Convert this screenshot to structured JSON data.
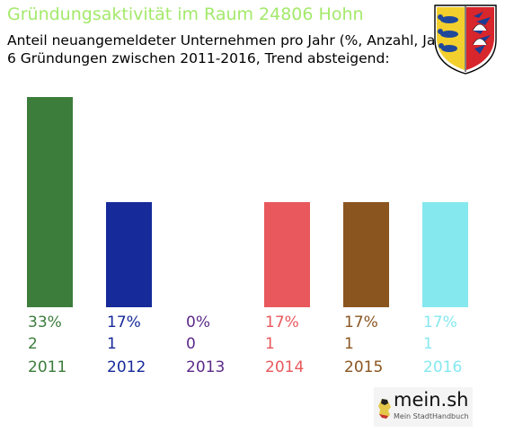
{
  "title": "Gründungsaktivität im Raum 24806 Hohn",
  "subtitle_line1": "Anteil neuangemeldeter Unternehmen pro Jahr (%, Anzahl, Jahr)",
  "subtitle_line2": "6 Gründungen zwischen 2011-2016, Trend absteigend:",
  "logo": {
    "name": "mein.sh",
    "tagline": "Mein StadtHandbuch"
  },
  "chart_data": {
    "type": "bar",
    "categories": [
      "2011",
      "2012",
      "2013",
      "2014",
      "2015",
      "2016"
    ],
    "percent_labels": [
      "33%",
      "17%",
      "0%",
      "17%",
      "17%",
      "17%"
    ],
    "count_labels": [
      "2",
      "1",
      "0",
      "1",
      "1",
      "1"
    ],
    "values": [
      2,
      1,
      0,
      1,
      1,
      1
    ],
    "colors": [
      "#3c7d3c",
      "#172a9a",
      "#5c2a8a",
      "#e8585c",
      "#8b5520",
      "#86e8ef"
    ],
    "title": "Gründungsaktivität im Raum 24806 Hohn",
    "ylim": [
      0,
      2
    ],
    "grid": false,
    "legend": "none"
  }
}
